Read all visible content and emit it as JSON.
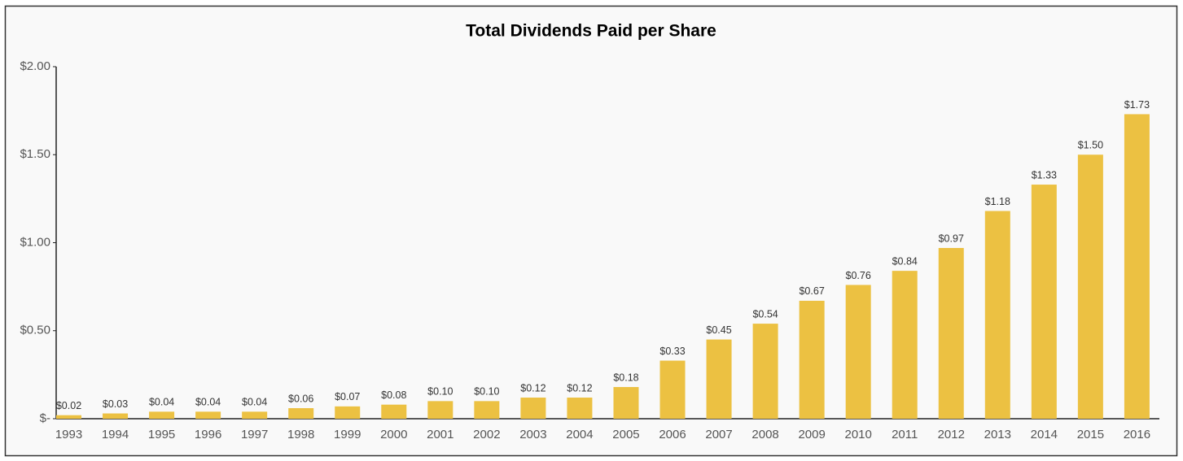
{
  "chart_data": {
    "type": "bar",
    "title": "Total Dividends Paid per Share",
    "categories": [
      "1993",
      "1994",
      "1995",
      "1996",
      "1997",
      "1998",
      "1999",
      "2000",
      "2001",
      "2002",
      "2003",
      "2004",
      "2005",
      "2006",
      "2007",
      "2008",
      "2009",
      "2010",
      "2011",
      "2012",
      "2013",
      "2014",
      "2015",
      "2016"
    ],
    "values": [
      0.02,
      0.03,
      0.04,
      0.04,
      0.04,
      0.06,
      0.07,
      0.08,
      0.1,
      0.1,
      0.12,
      0.12,
      0.18,
      0.33,
      0.45,
      0.54,
      0.67,
      0.76,
      0.84,
      0.97,
      1.18,
      1.33,
      1.5,
      1.73
    ],
    "value_labels": [
      "$0.02",
      "$0.03",
      "$0.04",
      "$0.04",
      "$0.04",
      "$0.06",
      "$0.07",
      "$0.08",
      "$0.10",
      "$0.10",
      "$0.12",
      "$0.12",
      "$0.18",
      "$0.33",
      "$0.45",
      "$0.54",
      "$0.67",
      "$0.76",
      "$0.84",
      "$0.97",
      "$1.18",
      "$1.33",
      "$1.50",
      "$1.73"
    ],
    "color": "#ecc142",
    "ylim": [
      0,
      2
    ],
    "yticks": [
      {
        "value": 0,
        "label": "$-"
      },
      {
        "value": 0.5,
        "label": "$0.50"
      },
      {
        "value": 1,
        "label": "$1.00"
      },
      {
        "value": 1.5,
        "label": "$1.50"
      },
      {
        "value": 2,
        "label": "$2.00"
      }
    ],
    "grid": false
  }
}
